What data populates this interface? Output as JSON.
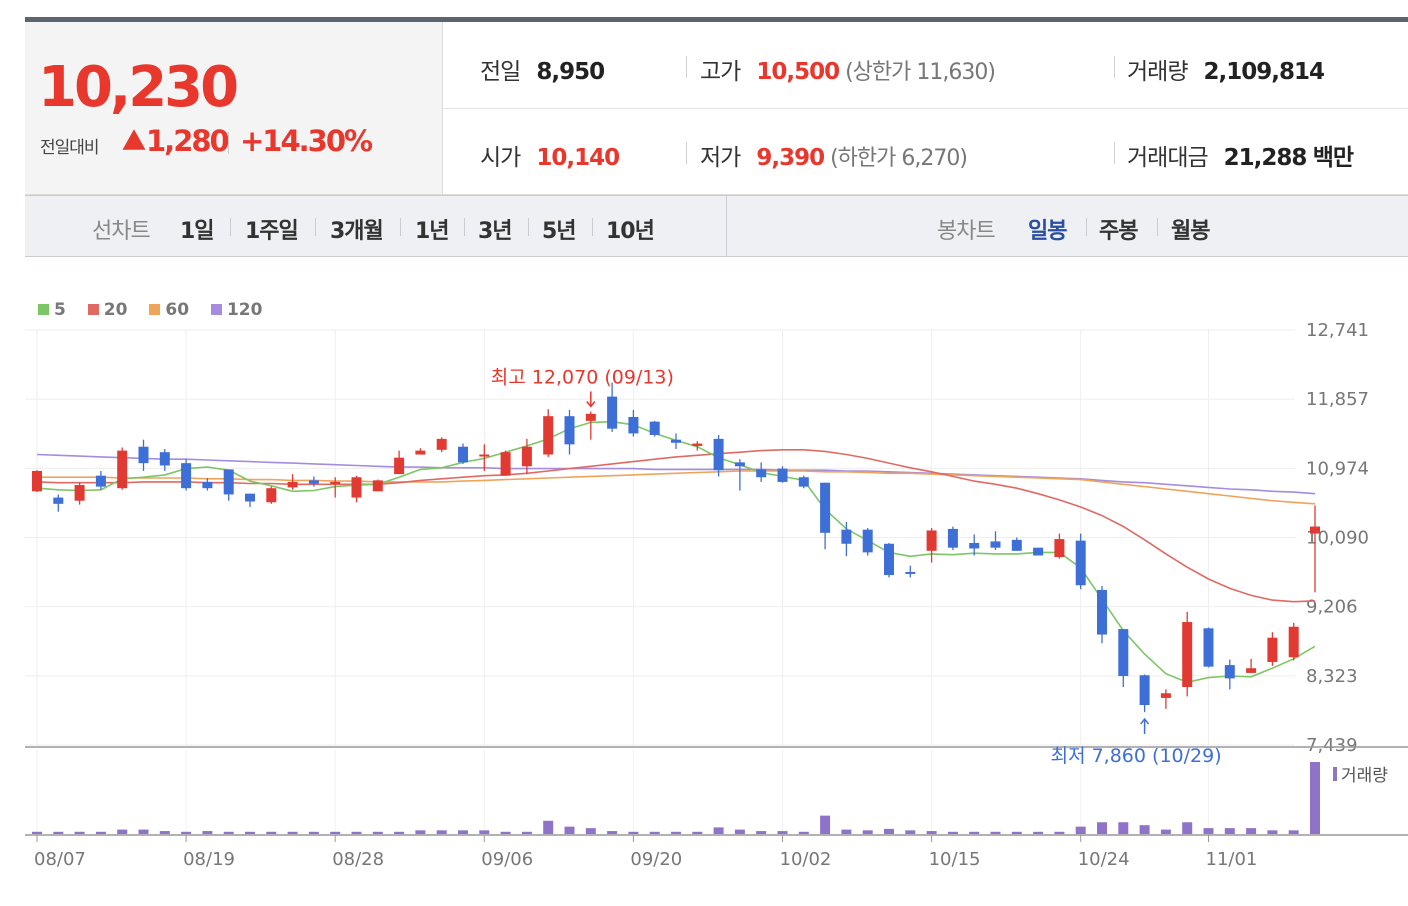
{
  "summary": {
    "price": "10,230",
    "change_label": "전일대비",
    "change_value": "1,280",
    "change_pct": "+14.30%",
    "prev_close_label": "전일",
    "prev_close": "8,950",
    "high_label": "고가",
    "high": "10,500",
    "upper_limit": "(상한가 11,630)",
    "volume_label": "거래량",
    "volume": "2,109,814",
    "open_label": "시가",
    "open": "10,140",
    "low_label": "저가",
    "low": "9,390",
    "lower_limit": "(하한가 6,270)",
    "amount_label": "거래대금",
    "amount": "21,288",
    "amount_unit": "백만"
  },
  "tabs": {
    "line_chart_label": "선차트",
    "line_periods": [
      "1일",
      "1주일",
      "3개월",
      "1년",
      "3년",
      "5년",
      "10년"
    ],
    "candle_chart_label": "봉차트",
    "candle_periods": [
      "일봉",
      "주봉",
      "월봉"
    ],
    "active_candle": "일봉"
  },
  "colors": {
    "up": "#e03a33",
    "down": "#3e6fd6",
    "ma5": "#7cc665",
    "ma20": "#e06a63",
    "ma60": "#f0a45a",
    "ma120": "#a58cdf",
    "volume": "#8f73c8",
    "accent": "#e8372c"
  },
  "chart_data": {
    "type": "candlestick",
    "legend": [
      "5",
      "20",
      "60",
      "120"
    ],
    "y_ticks": [
      "12,741",
      "11,857",
      "10,974",
      "10,090",
      "9,206",
      "8,323",
      "7,439"
    ],
    "ylim": [
      7439,
      12741
    ],
    "x_ticks": [
      "08/07",
      "08/19",
      "08/28",
      "09/06",
      "09/20",
      "10/02",
      "10/15",
      "10/24",
      "11/01"
    ],
    "x_tick_index": [
      0,
      7,
      14,
      21,
      28,
      35,
      42,
      49,
      55
    ],
    "volume_legend": "거래량",
    "high_annotation": "최고 12,070 (09/13)",
    "high_index": 26,
    "low_annotation": "최저 7,860 (10/29)",
    "low_index": 52,
    "candles": [
      [
        10680,
        10940,
        10950,
        10670
      ],
      [
        10600,
        10520,
        10640,
        10420
      ],
      [
        10560,
        10760,
        10790,
        10510
      ],
      [
        10880,
        10740,
        10940,
        10700
      ],
      [
        10720,
        11200,
        11240,
        10700
      ],
      [
        11250,
        11040,
        11340,
        10940
      ],
      [
        11180,
        11010,
        11220,
        10940
      ],
      [
        11040,
        10720,
        11090,
        10690
      ],
      [
        10800,
        10720,
        10850,
        10690
      ],
      [
        10960,
        10640,
        10960,
        10560
      ],
      [
        10650,
        10550,
        10650,
        10480
      ],
      [
        10540,
        10720,
        10740,
        10520
      ],
      [
        10730,
        10800,
        10900,
        10700
      ],
      [
        10820,
        10780,
        10870,
        10740
      ],
      [
        10800,
        10800,
        10860,
        10600
      ],
      [
        10600,
        10860,
        10880,
        10540
      ],
      [
        10680,
        10820,
        10830,
        10680
      ],
      [
        10900,
        11110,
        11200,
        10900
      ],
      [
        11150,
        11200,
        11230,
        11160
      ],
      [
        11210,
        11350,
        11370,
        11180
      ],
      [
        11250,
        11050,
        11290,
        11030
      ],
      [
        11150,
        11150,
        11280,
        10940
      ],
      [
        10880,
        11180,
        11200,
        10880
      ],
      [
        11000,
        11250,
        11350,
        10900
      ],
      [
        11150,
        11640,
        11730,
        11120
      ],
      [
        11640,
        11280,
        11720,
        11150
      ],
      [
        11580,
        11670,
        11700,
        11340
      ],
      [
        11890,
        11480,
        12070,
        11440
      ],
      [
        11630,
        11420,
        11720,
        11380
      ],
      [
        11570,
        11400,
        11580,
        11380
      ],
      [
        11340,
        11300,
        11420,
        11220
      ],
      [
        11260,
        11290,
        11320,
        11200
      ],
      [
        11350,
        10950,
        11400,
        10870
      ],
      [
        11050,
        11000,
        11090,
        10690
      ],
      [
        10960,
        10860,
        11050,
        10800
      ],
      [
        10970,
        10800,
        11000,
        10790
      ],
      [
        10860,
        10740,
        10880,
        10720
      ],
      [
        10790,
        10150,
        10790,
        9940
      ],
      [
        10190,
        10010,
        10290,
        9850
      ],
      [
        10190,
        9900,
        10210,
        9860
      ],
      [
        10010,
        9610,
        10020,
        9580
      ],
      [
        9650,
        9640,
        9730,
        9580
      ],
      [
        9920,
        10180,
        10210,
        9770
      ],
      [
        10200,
        9960,
        10230,
        9930
      ],
      [
        10020,
        9950,
        10130,
        9860
      ],
      [
        10040,
        9960,
        10170,
        9930
      ],
      [
        10060,
        9920,
        10090,
        9920
      ],
      [
        9960,
        9860,
        9950,
        9860
      ],
      [
        9840,
        10070,
        10140,
        9820
      ],
      [
        10050,
        9480,
        10140,
        9430
      ],
      [
        9420,
        8850,
        9470,
        8740
      ],
      [
        8920,
        8320,
        8920,
        8180
      ],
      [
        8330,
        7950,
        8340,
        7860
      ],
      [
        8040,
        8100,
        8150,
        7900
      ],
      [
        8180,
        9010,
        9140,
        8060
      ],
      [
        8930,
        8440,
        8940,
        8430
      ],
      [
        8460,
        8290,
        8530,
        8150
      ],
      [
        8360,
        8420,
        8540,
        8360
      ],
      [
        8500,
        8810,
        8880,
        8450
      ],
      [
        8560,
        8950,
        9000,
        8520
      ],
      [
        10140,
        10230,
        10500,
        9390
      ]
    ],
    "volumes": [
      0.3,
      0.3,
      0.3,
      0.3,
      0.6,
      0.6,
      0.4,
      0.3,
      0.4,
      0.3,
      0.3,
      0.3,
      0.3,
      0.3,
      0.3,
      0.3,
      0.3,
      0.3,
      0.5,
      0.5,
      0.5,
      0.5,
      0.3,
      0.3,
      1.8,
      1.0,
      0.8,
      0.4,
      0.3,
      0.3,
      0.3,
      0.3,
      0.9,
      0.6,
      0.4,
      0.4,
      0.3,
      2.5,
      0.6,
      0.5,
      0.7,
      0.5,
      0.4,
      0.3,
      0.3,
      0.3,
      0.3,
      0.3,
      0.3,
      1.0,
      1.6,
      1.6,
      1.2,
      0.6,
      1.6,
      0.8,
      0.8,
      0.8,
      0.5,
      0.5,
      9.8
    ],
    "ma5": [
      10720,
      10700,
      10690,
      10700,
      10840,
      10860,
      10890,
      10970,
      10990,
      10950,
      10810,
      10750,
      10680,
      10690,
      10740,
      10760,
      10770,
      10860,
      10960,
      10980,
      11050,
      11100,
      11180,
      11260,
      11350,
      11480,
      11560,
      11570,
      11530,
      11420,
      11330,
      11250,
      11110,
      11020,
      10920,
      10870,
      10820,
      10450,
      10200,
      10050,
      9900,
      9850,
      9880,
      9870,
      9890,
      9880,
      9880,
      9900,
      9900,
      9700,
      9300,
      8900,
      8600,
      8350,
      8240,
      8300,
      8320,
      8310,
      8420,
      8540,
      8700
    ],
    "ma20": [
      10800,
      10790,
      10790,
      10790,
      10790,
      10800,
      10800,
      10800,
      10790,
      10790,
      10780,
      10780,
      10770,
      10770,
      10770,
      10770,
      10770,
      10790,
      10820,
      10840,
      10860,
      10880,
      10890,
      10910,
      10940,
      10970,
      11000,
      11030,
      11060,
      11090,
      11120,
      11140,
      11160,
      11180,
      11200,
      11210,
      11210,
      11190,
      11150,
      11100,
      11040,
      10980,
      10930,
      10870,
      10810,
      10770,
      10720,
      10650,
      10570,
      10480,
      10370,
      10230,
      10060,
      9880,
      9710,
      9560,
      9440,
      9350,
      9290,
      9270,
      9280
    ],
    "ma60": [
      10860,
      10860,
      10860,
      10860,
      10850,
      10850,
      10850,
      10850,
      10840,
      10840,
      10830,
      10830,
      10820,
      10820,
      10810,
      10810,
      10800,
      10800,
      10800,
      10800,
      10810,
      10820,
      10830,
      10840,
      10850,
      10860,
      10870,
      10880,
      10890,
      10900,
      10910,
      10920,
      10930,
      10940,
      10940,
      10940,
      10940,
      10930,
      10930,
      10920,
      10910,
      10910,
      10900,
      10890,
      10880,
      10870,
      10860,
      10850,
      10840,
      10830,
      10800,
      10770,
      10740,
      10710,
      10680,
      10650,
      10620,
      10590,
      10560,
      10540,
      10520
    ],
    "ma120": [
      11150,
      11140,
      11130,
      11120,
      11110,
      11100,
      11090,
      11090,
      11080,
      11070,
      11060,
      11050,
      11040,
      11030,
      11020,
      11010,
      11000,
      10990,
      10990,
      10980,
      10980,
      10980,
      10970,
      10970,
      10970,
      10970,
      10970,
      10970,
      10970,
      10960,
      10960,
      10960,
      10960,
      10960,
      10960,
      10950,
      10950,
      10950,
      10940,
      10940,
      10930,
      10920,
      10910,
      10900,
      10890,
      10880,
      10870,
      10860,
      10850,
      10840,
      10820,
      10800,
      10790,
      10770,
      10750,
      10730,
      10710,
      10700,
      10680,
      10670,
      10650
    ]
  }
}
